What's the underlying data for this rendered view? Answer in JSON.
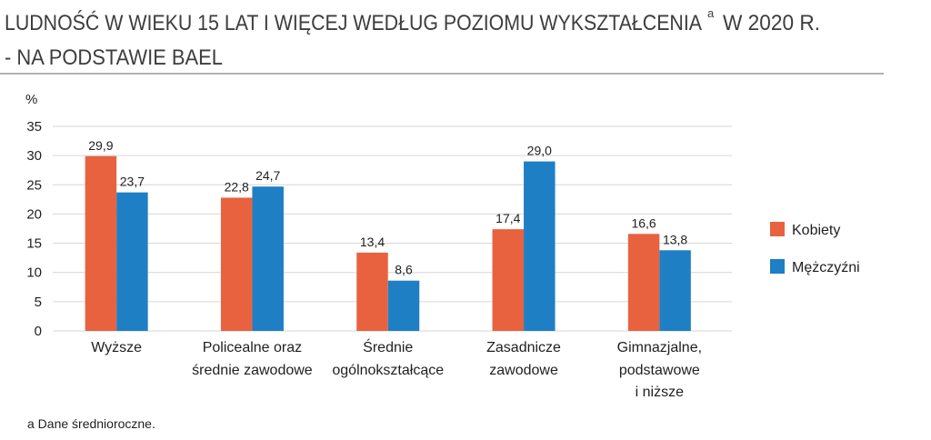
{
  "chart_data": {
    "type": "bar",
    "title": "LUDNOŚĆ W WIEKU 15 LAT I WIĘCEJ WEDŁUG POZIOMU WYKSZTAŁCENIA",
    "title_note_marker": "a",
    "title_suffix": "W 2020 R.",
    "title_line2": "- NA PODSTAWIE BAEL",
    "ylabel": "%",
    "ylim": [
      0,
      35
    ],
    "yticks": [
      0,
      5,
      10,
      15,
      20,
      25,
      30,
      35
    ],
    "grid": true,
    "legend_position": "right",
    "categories": [
      "Wyższe",
      "Policealne oraz\nśrednie zawodowe",
      "Średnie\nogólnokształcące",
      "Zasadnicze\nzawodowe",
      "Gimnazjalne,\npodstawowe\ni niższe"
    ],
    "series": [
      {
        "name": "Kobiety",
        "color": "#E8623F",
        "values": [
          29.9,
          22.8,
          13.4,
          17.4,
          16.6
        ],
        "labels": [
          "29,9",
          "22,8",
          "13,4",
          "17,4",
          "16,6"
        ]
      },
      {
        "name": "Mężczyźni",
        "color": "#1E7FC5",
        "values": [
          23.7,
          24.7,
          8.6,
          29.0,
          13.8
        ],
        "labels": [
          "23,7",
          "24,7",
          "8,6",
          "29,0",
          "13,8"
        ]
      }
    ],
    "footnote": "a Dane średnioroczne."
  }
}
